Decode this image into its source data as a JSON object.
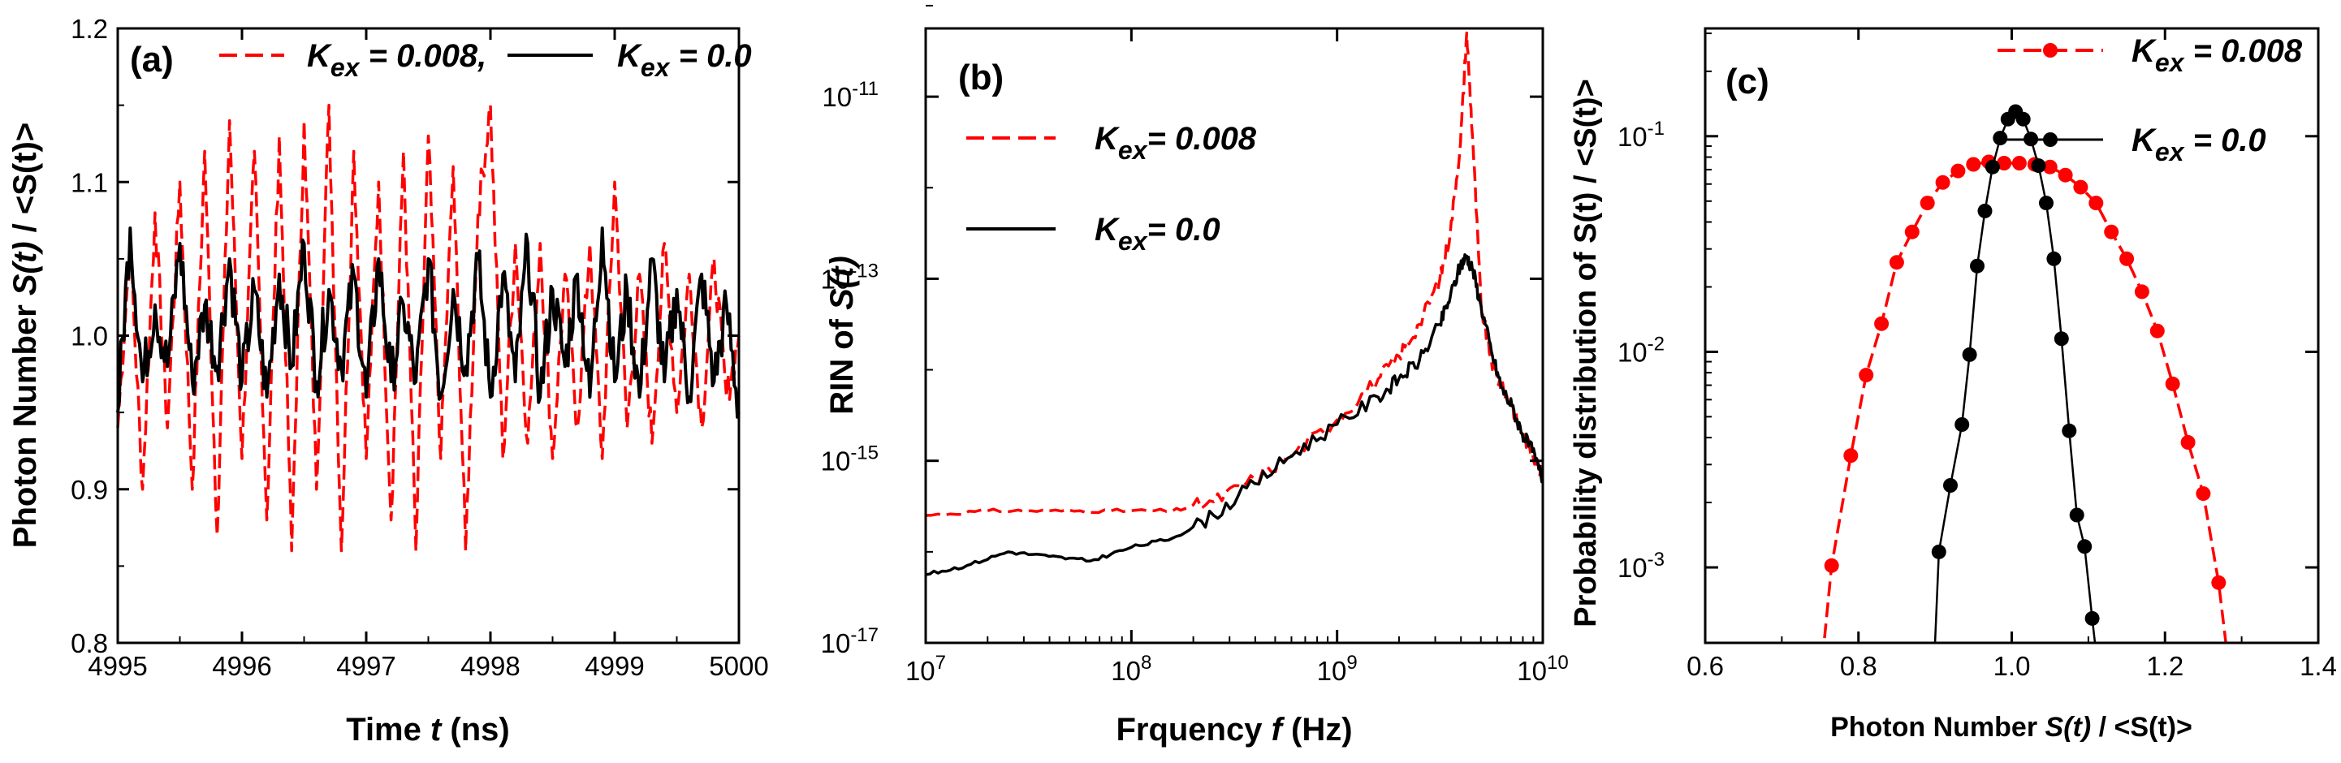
{
  "colors": {
    "red": "#ff0000",
    "black": "#000000"
  },
  "chart_data": [
    {
      "panel": "(a)",
      "type": "line",
      "xlabel_pre": "Time ",
      "xlabel_var": "t",
      "xlabel_post": " (ns)",
      "ylabel_pre": "Photon Number ",
      "ylabel_var": "S(t)",
      "ylabel_post": " / <S(t)>",
      "xlim": [
        4995,
        5000
      ],
      "ylim": [
        0.8,
        1.2
      ],
      "xticks": [
        "4995",
        "4996",
        "4997",
        "4998",
        "4999",
        "5000"
      ],
      "yticks": [
        "0.8",
        "0.9",
        "1.0",
        "1.1",
        "1.2"
      ],
      "legend": [
        {
          "base": "K",
          "sub": "ex",
          "rest": " = 0.008,",
          "style": "dashed",
          "color": "#ff0000"
        },
        {
          "base": "K",
          "sub": "ex",
          "rest": " = 0.0",
          "style": "solid",
          "color": "#000000"
        }
      ],
      "series": [
        {
          "name": "Kex = 0.008",
          "color": "#ff0000",
          "style": "dashed",
          "x": [
            4995.0,
            4995.1,
            4995.2,
            4995.3,
            4995.4,
            4995.5,
            4995.6,
            4995.7,
            4995.8,
            4995.9,
            4996.0,
            4996.1,
            4996.2,
            4996.3,
            4996.4,
            4996.5,
            4996.6,
            4996.7,
            4996.8,
            4996.9,
            4997.0,
            4997.1,
            4997.2,
            4997.3,
            4997.4,
            4997.5,
            4997.6,
            4997.7,
            4997.8,
            4997.9,
            4998.0,
            4998.1,
            4998.2,
            4998.3,
            4998.4,
            4998.5,
            4998.6,
            4998.7,
            4998.8,
            4998.9,
            4999.0,
            4999.1,
            4999.2,
            4999.3,
            4999.4,
            4999.5,
            4999.6,
            4999.7,
            4999.8,
            4999.9,
            5000.0
          ],
          "y": [
            0.94,
            1.06,
            0.9,
            1.08,
            0.94,
            1.1,
            0.9,
            1.12,
            0.87,
            1.14,
            0.92,
            1.12,
            0.88,
            1.13,
            0.86,
            1.14,
            0.9,
            1.15,
            0.86,
            1.12,
            0.92,
            1.1,
            0.88,
            1.12,
            0.86,
            1.13,
            0.92,
            1.11,
            0.86,
            1.08,
            1.15,
            0.92,
            1.06,
            0.93,
            1.06,
            0.92,
            1.04,
            0.94,
            1.06,
            0.92,
            1.1,
            0.94,
            1.04,
            0.93,
            1.06,
            0.95,
            1.04,
            0.94,
            1.05,
            0.96,
            1.0
          ]
        },
        {
          "name": "Kex = 0.0",
          "color": "#000000",
          "style": "solid",
          "x": [
            4995.0,
            4995.1,
            4995.2,
            4995.3,
            4995.4,
            4995.5,
            4995.6,
            4995.7,
            4995.8,
            4995.9,
            4996.0,
            4996.1,
            4996.2,
            4996.3,
            4996.4,
            4996.5,
            4996.6,
            4996.7,
            4996.8,
            4996.9,
            4997.0,
            4997.1,
            4997.2,
            4997.3,
            4997.4,
            4997.5,
            4997.6,
            4997.7,
            4997.8,
            4997.9,
            4998.0,
            4998.1,
            4998.2,
            4998.3,
            4998.4,
            4998.5,
            4998.6,
            4998.7,
            4998.8,
            4998.9,
            4999.0,
            4999.1,
            4999.2,
            4999.3,
            4999.4,
            4999.5,
            4999.6,
            4999.7,
            4999.8,
            4999.9,
            5000.0
          ],
          "y": [
            0.95,
            1.07,
            0.97,
            1.02,
            0.98,
            1.06,
            0.97,
            1.02,
            0.98,
            1.05,
            0.97,
            1.03,
            0.96,
            1.04,
            0.98,
            1.06,
            0.97,
            1.03,
            0.98,
            1.04,
            0.96,
            1.05,
            0.97,
            1.02,
            0.97,
            1.05,
            0.96,
            1.03,
            0.98,
            1.05,
            0.96,
            1.04,
            0.97,
            1.06,
            0.96,
            1.03,
            0.98,
            1.04,
            0.96,
            1.07,
            0.97,
            1.03,
            0.96,
            1.05,
            0.97,
            1.03,
            0.96,
            1.04,
            0.97,
            1.02,
            0.95
          ]
        }
      ]
    },
    {
      "panel": "(b)",
      "type": "line",
      "scale": "log-log",
      "xlabel_pre": "Frquency ",
      "xlabel_var": "f",
      "xlabel_post": " (Hz)",
      "ylabel_pre": "RIN of ",
      "ylabel_var": "S(t)",
      "xlim_exp": [
        7,
        10
      ],
      "ylim_exp": [
        -17,
        -10.25
      ],
      "xticks": [
        {
          "base": "10",
          "exp": "7"
        },
        {
          "base": "10",
          "exp": "8"
        },
        {
          "base": "10",
          "exp": "9"
        },
        {
          "base": "10",
          "exp": "10"
        }
      ],
      "yticks": [
        {
          "base": "10",
          "exp": "-17"
        },
        {
          "base": "10",
          "exp": "-15"
        },
        {
          "base": "10",
          "exp": "-13"
        },
        {
          "base": "10",
          "exp": "-11"
        }
      ],
      "legend": [
        {
          "base": "K",
          "sub": "ex",
          "rest": "= 0.008",
          "style": "dashed",
          "color": "#ff0000"
        },
        {
          "base": "K",
          "sub": "ex",
          "rest": "= 0.0",
          "style": "solid",
          "color": "#000000"
        }
      ],
      "series": [
        {
          "name": "Kex = 0.008",
          "color": "#ff0000",
          "style": "dashed",
          "log10_f": [
            7.0,
            7.3,
            7.6,
            7.9,
            8.2,
            8.4,
            8.6,
            8.8,
            9.0,
            9.2,
            9.3,
            9.4,
            9.5,
            9.55,
            9.6,
            9.63,
            9.66,
            9.7,
            9.75,
            9.8,
            9.85,
            9.9,
            9.95,
            10.0
          ],
          "log10_rin": [
            -15.6,
            -15.55,
            -15.55,
            -15.55,
            -15.55,
            -15.45,
            -15.2,
            -14.9,
            -14.55,
            -14.1,
            -13.85,
            -13.5,
            -13.0,
            -12.5,
            -11.5,
            -10.3,
            -11.5,
            -13.3,
            -13.9,
            -14.2,
            -14.4,
            -14.7,
            -14.9,
            -15.2
          ]
        },
        {
          "name": "Kex = 0.0",
          "color": "#000000",
          "style": "solid",
          "log10_f": [
            7.0,
            7.2,
            7.4,
            7.6,
            7.8,
            8.0,
            8.2,
            8.4,
            8.6,
            8.8,
            9.0,
            9.2,
            9.3,
            9.4,
            9.5,
            9.55,
            9.6,
            9.63,
            9.66,
            9.7,
            9.75,
            9.8,
            9.85,
            9.9,
            9.95,
            10.0
          ],
          "log10_rin": [
            -16.25,
            -16.15,
            -16.0,
            -16.05,
            -16.1,
            -15.95,
            -15.85,
            -15.6,
            -15.25,
            -14.9,
            -14.6,
            -14.3,
            -14.1,
            -13.9,
            -13.5,
            -13.2,
            -12.85,
            -12.75,
            -12.9,
            -13.3,
            -13.8,
            -14.2,
            -14.4,
            -14.7,
            -14.9,
            -15.2
          ]
        }
      ]
    },
    {
      "panel": "(c)",
      "type": "scatter",
      "scale": "semilog-y",
      "xlabel_pre": "Photon Number ",
      "xlabel_var": "S(t)",
      "xlabel_post": " / <S(t)>",
      "ylabel": "Probability distribution of S(t) / <S(t)>",
      "xlim": [
        0.6,
        1.4
      ],
      "ylim_exp": [
        -3.35,
        -0.5
      ],
      "xticks": [
        "0.6",
        "0.8",
        "1.0",
        "1.2",
        "1.4"
      ],
      "yticks": [
        {
          "base": "10",
          "exp": "-3"
        },
        {
          "base": "10",
          "exp": "-2"
        },
        {
          "base": "10",
          "exp": "-1"
        }
      ],
      "legend": [
        {
          "base": "K",
          "sub": "ex",
          "rest": " = 0.008",
          "style": "dashed-marker",
          "color": "#ff0000"
        },
        {
          "base": "K",
          "sub": "ex",
          "rest": " = 0.0",
          "style": "solid-marker",
          "color": "#000000"
        }
      ],
      "series": [
        {
          "name": "Kex = 0.008",
          "color": "#ff0000",
          "style": "dashed",
          "x": [
            0.765,
            0.79,
            0.81,
            0.83,
            0.85,
            0.87,
            0.89,
            0.91,
            0.93,
            0.95,
            0.97,
            0.99,
            1.01,
            1.03,
            1.05,
            1.07,
            1.09,
            1.11,
            1.13,
            1.15,
            1.17,
            1.19,
            1.21,
            1.23,
            1.25,
            1.27
          ],
          "y": [
            0.00102,
            0.0033,
            0.0078,
            0.0135,
            0.026,
            0.036,
            0.049,
            0.061,
            0.069,
            0.074,
            0.076,
            0.075,
            0.075,
            0.074,
            0.072,
            0.066,
            0.058,
            0.049,
            0.036,
            0.027,
            0.019,
            0.0125,
            0.0071,
            0.0038,
            0.0022,
            0.00085
          ]
        },
        {
          "name": "Kex = 0.0",
          "color": "#000000",
          "style": "solid",
          "x": [
            0.905,
            0.92,
            0.935,
            0.945,
            0.955,
            0.965,
            0.975,
            0.985,
            0.995,
            1.005,
            1.015,
            1.025,
            1.035,
            1.045,
            1.055,
            1.065,
            1.075,
            1.085,
            1.095,
            1.105
          ],
          "y": [
            0.00118,
            0.0024,
            0.0046,
            0.0097,
            0.025,
            0.045,
            0.072,
            0.098,
            0.12,
            0.13,
            0.12,
            0.097,
            0.073,
            0.049,
            0.027,
            0.0115,
            0.0043,
            0.00175,
            0.00125,
            0.00058
          ]
        }
      ]
    }
  ]
}
